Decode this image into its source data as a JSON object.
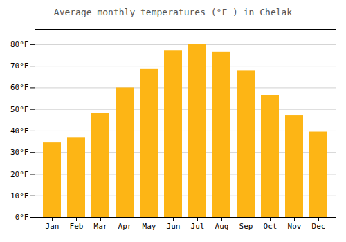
{
  "chart_data": {
    "type": "bar",
    "title": "Average monthly temperatures (°F ) in Chelak",
    "categories": [
      "Jan",
      "Feb",
      "Mar",
      "Apr",
      "May",
      "Jun",
      "Jul",
      "Aug",
      "Sep",
      "Oct",
      "Nov",
      "Dec"
    ],
    "values": [
      34.5,
      37.0,
      48.0,
      60.0,
      68.5,
      77.0,
      80.0,
      76.5,
      68.0,
      56.5,
      47.0,
      39.5
    ],
    "color": "#FDB515",
    "ylim": [
      0,
      87
    ],
    "yticks": [
      {
        "value": 0,
        "label": "0°F"
      },
      {
        "value": 10,
        "label": "10°F"
      },
      {
        "value": 20,
        "label": "20°F"
      },
      {
        "value": 30,
        "label": "30°F"
      },
      {
        "value": 40,
        "label": "40°F"
      },
      {
        "value": 50,
        "label": "50°F"
      },
      {
        "value": 60,
        "label": "60°F"
      },
      {
        "value": 70,
        "label": "70°F"
      },
      {
        "value": 80,
        "label": "80°F"
      }
    ],
    "grid": true
  }
}
